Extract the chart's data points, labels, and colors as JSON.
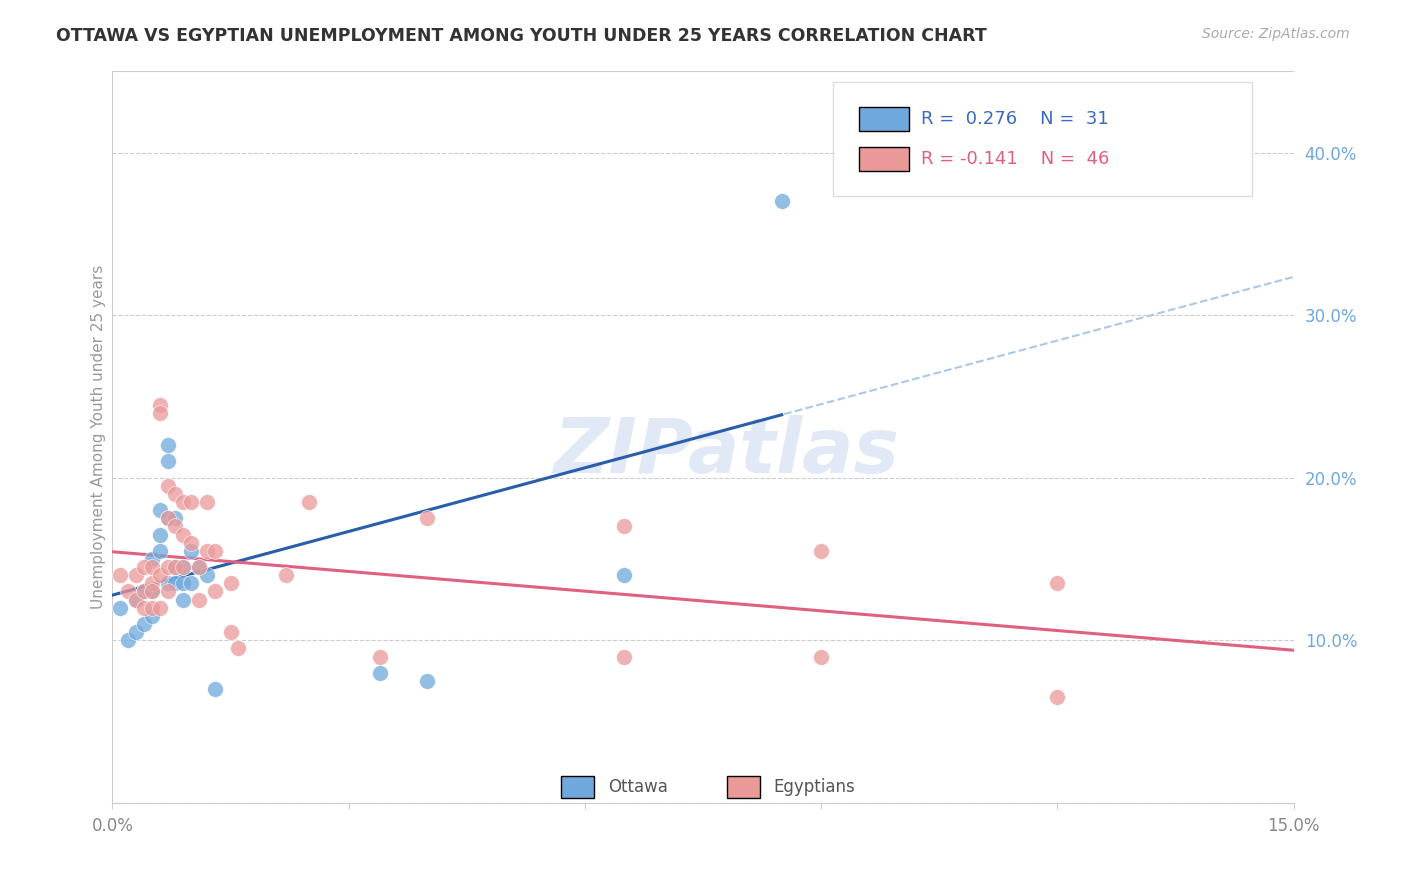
{
  "title": "OTTAWA VS EGYPTIAN UNEMPLOYMENT AMONG YOUTH UNDER 25 YEARS CORRELATION CHART",
  "source": "Source: ZipAtlas.com",
  "ylabel": "Unemployment Among Youth under 25 years",
  "xlim": [
    0.0,
    0.15
  ],
  "ylim": [
    0.0,
    0.45
  ],
  "x_ticks": [
    0.0,
    0.03,
    0.06,
    0.09,
    0.12,
    0.15
  ],
  "y_ticks_right": [
    0.0,
    0.1,
    0.2,
    0.3,
    0.4
  ],
  "y_tick_labels_right": [
    "",
    "10.0%",
    "20.0%",
    "30.0%",
    "40.0%"
  ],
  "ottawa_color": "#6fa8dc",
  "ottawa_line_color": "#2a5dac",
  "ottawa_dashed_color": "#aac8e8",
  "egyptian_color": "#ea9999",
  "egyptian_line_color": "#e06080",
  "grid_color": "#cccccc",
  "bg_color": "#ffffff",
  "watermark": "ZIPatlas",
  "legend_R_ottawa": "0.276",
  "legend_N_ottawa": "31",
  "legend_R_egyptian": "-0.141",
  "legend_N_egyptian": "46",
  "ottawa_x": [
    0.001,
    0.002,
    0.003,
    0.003,
    0.004,
    0.004,
    0.005,
    0.005,
    0.005,
    0.006,
    0.006,
    0.006,
    0.007,
    0.007,
    0.007,
    0.007,
    0.008,
    0.008,
    0.008,
    0.009,
    0.009,
    0.009,
    0.01,
    0.01,
    0.011,
    0.012,
    0.013,
    0.034,
    0.04,
    0.065,
    0.085
  ],
  "ottawa_y": [
    0.12,
    0.1,
    0.125,
    0.105,
    0.13,
    0.11,
    0.15,
    0.13,
    0.115,
    0.18,
    0.165,
    0.155,
    0.22,
    0.21,
    0.175,
    0.135,
    0.175,
    0.145,
    0.135,
    0.145,
    0.135,
    0.125,
    0.155,
    0.135,
    0.145,
    0.14,
    0.07,
    0.08,
    0.075,
    0.14,
    0.37
  ],
  "egyptian_x": [
    0.001,
    0.002,
    0.003,
    0.003,
    0.004,
    0.004,
    0.004,
    0.005,
    0.005,
    0.005,
    0.005,
    0.006,
    0.006,
    0.006,
    0.006,
    0.007,
    0.007,
    0.007,
    0.007,
    0.008,
    0.008,
    0.008,
    0.009,
    0.009,
    0.009,
    0.01,
    0.01,
    0.011,
    0.011,
    0.012,
    0.012,
    0.013,
    0.013,
    0.015,
    0.015,
    0.016,
    0.022,
    0.025,
    0.034,
    0.04,
    0.065,
    0.065,
    0.09,
    0.09,
    0.12,
    0.12
  ],
  "egyptian_y": [
    0.14,
    0.13,
    0.14,
    0.125,
    0.145,
    0.13,
    0.12,
    0.145,
    0.135,
    0.13,
    0.12,
    0.245,
    0.24,
    0.14,
    0.12,
    0.195,
    0.175,
    0.145,
    0.13,
    0.19,
    0.17,
    0.145,
    0.185,
    0.165,
    0.145,
    0.185,
    0.16,
    0.145,
    0.125,
    0.185,
    0.155,
    0.155,
    0.13,
    0.135,
    0.105,
    0.095,
    0.14,
    0.185,
    0.09,
    0.175,
    0.17,
    0.09,
    0.09,
    0.155,
    0.065,
    0.135
  ]
}
